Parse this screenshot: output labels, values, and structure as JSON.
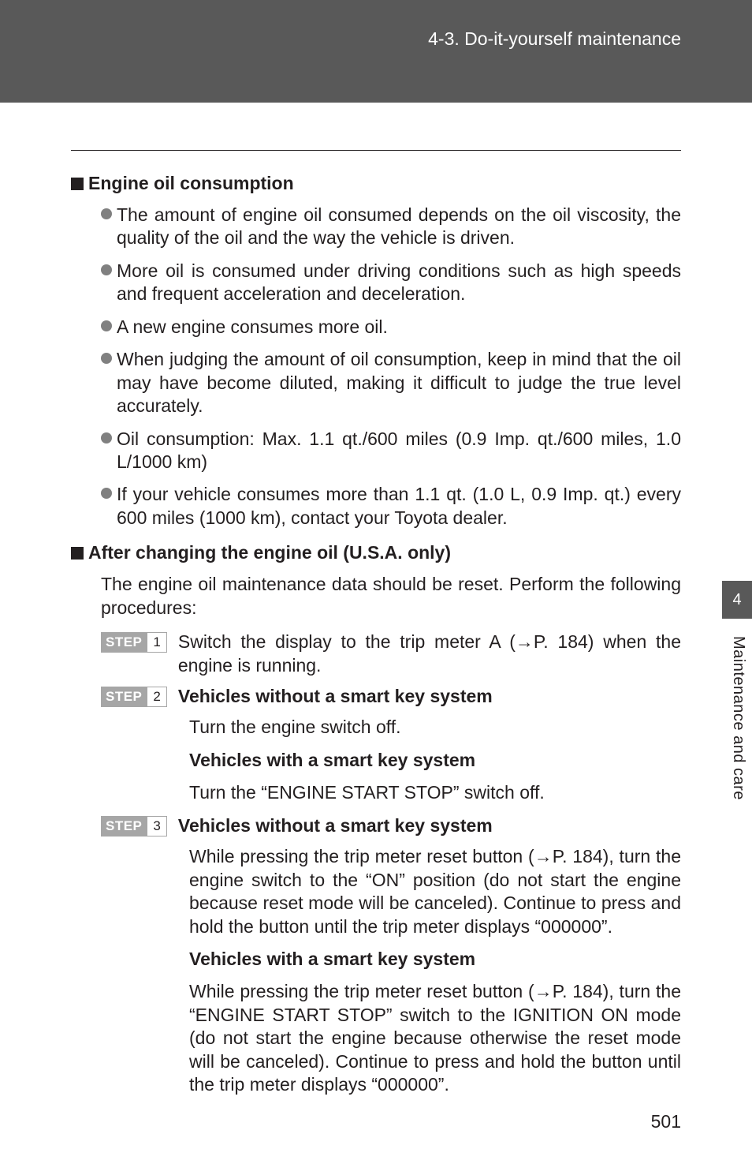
{
  "colors": {
    "band_bg": "#595959",
    "text": "#231f20",
    "bullet": "#808080",
    "step_bg": "#a6a6a6",
    "white": "#ffffff"
  },
  "header": {
    "breadcrumb": "4-3. Do-it-yourself maintenance"
  },
  "section1": {
    "title": "Engine oil consumption",
    "bullets": [
      "The amount of engine oil consumed depends on the oil viscosity, the quality of the oil and the way the vehicle is driven.",
      "More oil is consumed under driving conditions such as high speeds and frequent acceleration and deceleration.",
      "A new engine consumes more oil.",
      "When judging the amount of oil consumption, keep in mind that the oil may have become diluted, making it difficult to judge the true level accurately.",
      "Oil consumption: Max. 1.1 qt./600 miles (0.9 Imp. qt./600 miles, 1.0 L/1000 km)",
      "If your vehicle consumes more than 1.1 qt. (1.0 L, 0.9 Imp. qt.) every 600 miles (1000 km), contact your Toyota dealer."
    ]
  },
  "section2": {
    "title": "After changing the engine oil (U.S.A. only)",
    "intro": "The engine oil maintenance data should be reset. Perform the following procedures:"
  },
  "steps": {
    "label": "STEP",
    "s1": {
      "num": "1",
      "text": "Switch the display to the trip meter A (→P. 184) when the engine is running."
    },
    "s2": {
      "num": "2",
      "h1": "Vehicles without a smart key system",
      "p1": "Turn the engine switch off.",
      "h2": "Vehicles with a smart key system",
      "p2": "Turn the “ENGINE START STOP” switch off."
    },
    "s3": {
      "num": "3",
      "h1": "Vehicles without a smart key system",
      "p1": "While pressing the trip meter reset button (→P. 184), turn the engine switch to the “ON” position (do not start the engine because reset mode will be canceled). Continue to press and hold the button until the trip meter displays “000000”.",
      "h2": "Vehicles with a smart key system",
      "p2": "While pressing the trip meter reset button (→P. 184), turn the “ENGINE START STOP” switch to the IGNITION ON mode (do not start the engine because otherwise the reset mode will be canceled). Continue to press and hold the button until the trip meter displays “000000”."
    }
  },
  "side": {
    "tab": "4",
    "label": "Maintenance and care"
  },
  "page": "501"
}
